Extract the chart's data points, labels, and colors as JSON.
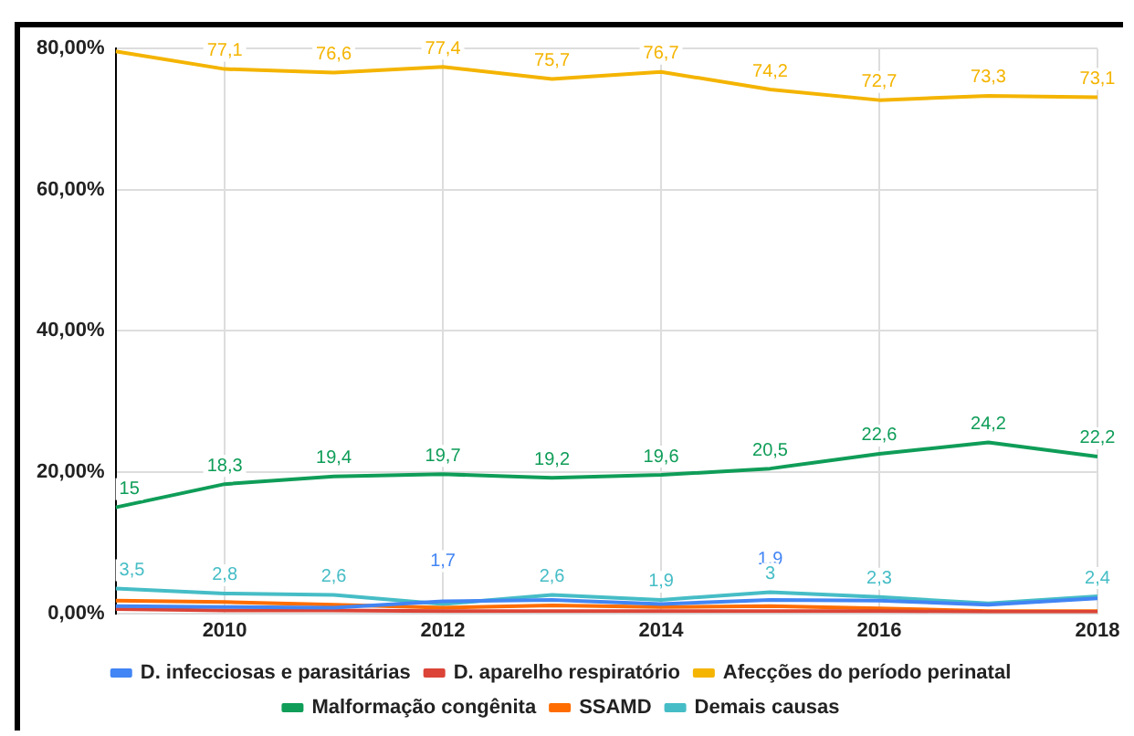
{
  "chart_data": {
    "type": "line",
    "x": [
      2009,
      2010,
      2011,
      2012,
      2013,
      2014,
      2015,
      2016,
      2017,
      2018
    ],
    "xlim": [
      2009,
      2018
    ],
    "xticks": [
      2010,
      2012,
      2014,
      2016,
      2018
    ],
    "ylim": [
      0,
      80
    ],
    "yticks": [
      {
        "value": 0,
        "label": "0,00%"
      },
      {
        "value": 20,
        "label": "20,00%"
      },
      {
        "value": 40,
        "label": "40,00%"
      },
      {
        "value": 60,
        "label": "60,00%"
      },
      {
        "value": 80,
        "label": "80,00%"
      }
    ],
    "grid": true,
    "legend": "bottom",
    "marker": "none",
    "line_style": "solid",
    "series": [
      {
        "name": "D. infecciosas e parasitárias",
        "color": "#4285f4",
        "values": [
          1.0,
          0.9,
          0.8,
          1.7,
          1.9,
          1.3,
          1.9,
          1.8,
          1.2,
          2.1
        ],
        "value_labels": [
          null,
          null,
          null,
          "1,7",
          null,
          null,
          "1,9",
          null,
          null,
          null
        ]
      },
      {
        "name": "D. aparelho respiratório",
        "color": "#db4437",
        "values": [
          0.6,
          0.4,
          0.4,
          0.3,
          0.3,
          0.3,
          0.3,
          0.3,
          0.2,
          0.2
        ],
        "value_labels": [
          null,
          null,
          null,
          null,
          null,
          null,
          null,
          null,
          null,
          null
        ]
      },
      {
        "name": "Afecções do período perinatal",
        "color": "#f4b400",
        "values": [
          79.6,
          77.1,
          76.6,
          77.4,
          75.7,
          76.7,
          74.2,
          72.7,
          73.3,
          73.1
        ],
        "value_labels": [
          null,
          "77,1",
          "76,6",
          "77,4",
          "75,7",
          "76,7",
          "74,2",
          "72,7",
          "73,3",
          "73,1"
        ]
      },
      {
        "name": "Malformação congênita",
        "color": "#0f9d58",
        "values": [
          15,
          18.3,
          19.4,
          19.7,
          19.2,
          19.6,
          20.5,
          22.6,
          24.2,
          22.2
        ],
        "value_labels": [
          "15",
          "18,3",
          "19,4",
          "19,7",
          "19,2",
          "19,6",
          "20,5",
          "22,6",
          "24,2",
          "22,2"
        ]
      },
      {
        "name": "SSAMD",
        "color": "#ff6d00",
        "values": [
          1.8,
          1.6,
          1.2,
          0.8,
          1.1,
          0.9,
          1.0,
          0.7,
          0.3,
          0.3
        ],
        "value_labels": [
          null,
          null,
          null,
          null,
          null,
          null,
          null,
          null,
          null,
          null
        ]
      },
      {
        "name": "Demais causas",
        "color": "#46bdc6",
        "values": [
          3.5,
          2.8,
          2.6,
          1.3,
          2.6,
          1.9,
          3,
          2.3,
          1.4,
          2.4
        ],
        "value_labels": [
          "3,5",
          "2,8",
          "2,6",
          null,
          "2,6",
          "1,9",
          "3",
          "2,3",
          null,
          "2,4"
        ]
      }
    ]
  }
}
